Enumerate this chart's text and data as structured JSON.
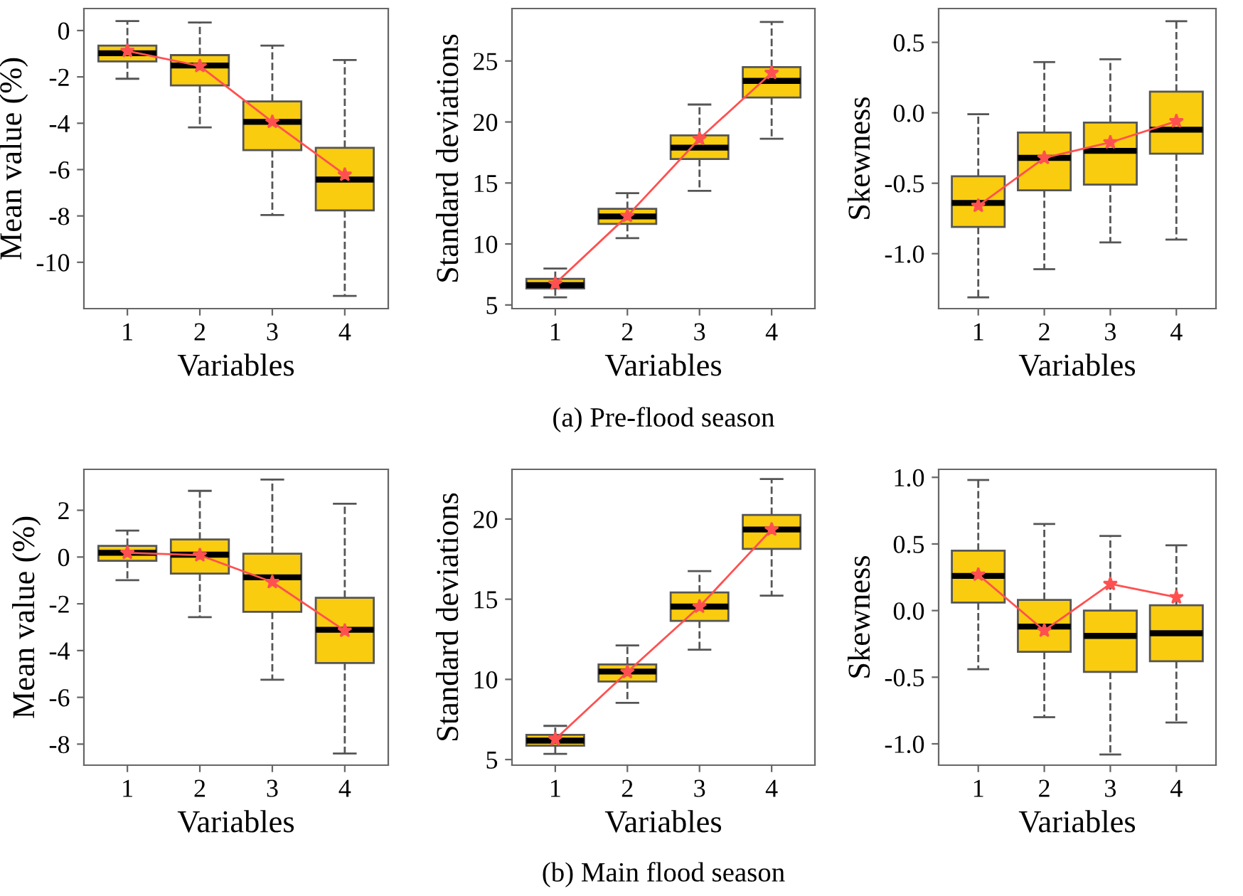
{
  "chart_data": [
    {
      "type": "box",
      "xlabel": "Variables",
      "ylabel": "Mean value (%)",
      "categories": [
        "1",
        "2",
        "3",
        "4"
      ],
      "ylim": [
        -12,
        0.95
      ],
      "yticks": [
        -10,
        -8,
        -6,
        -4,
        -2,
        0
      ],
      "boxes": [
        {
          "low": -2.08,
          "q1": -1.33,
          "median": -0.98,
          "q3": -0.65,
          "high": 0.41
        },
        {
          "low": -4.18,
          "q1": -2.37,
          "median": -1.51,
          "q3": -1.06,
          "high": 0.35
        },
        {
          "low": -7.96,
          "q1": -5.16,
          "median": -3.94,
          "q3": -3.06,
          "high": -0.65
        },
        {
          "low": -11.45,
          "q1": -7.76,
          "median": -6.43,
          "q3": -5.06,
          "high": -1.27
        }
      ],
      "series": [
        {
          "type": "line",
          "color": "#ff5050",
          "marker": "star",
          "values": [
            -0.88,
            -1.53,
            -3.94,
            -6.22
          ]
        }
      ]
    },
    {
      "type": "box",
      "xlabel": "Variables",
      "ylabel": "Standard deviations",
      "categories": [
        "1",
        "2",
        "3",
        "4"
      ],
      "ylim": [
        4.7,
        29.3
      ],
      "yticks": [
        5,
        10,
        15,
        20,
        25
      ],
      "annotations": [
        "(a) Pre-flood season"
      ],
      "boxes": [
        {
          "low": 5.62,
          "q1": 6.36,
          "median": 6.63,
          "q3": 7.14,
          "high": 7.99
        },
        {
          "low": 10.48,
          "q1": 11.64,
          "median": 12.26,
          "q3": 12.88,
          "high": 14.17
        },
        {
          "low": 14.36,
          "q1": 16.96,
          "median": 17.9,
          "q3": 18.9,
          "high": 21.43
        },
        {
          "low": 18.63,
          "q1": 22.0,
          "median": 23.37,
          "q3": 24.5,
          "high": 28.2
        }
      ],
      "series": [
        {
          "type": "line",
          "color": "#ff5050",
          "marker": "star",
          "values": [
            6.75,
            12.3,
            18.63,
            24.03
          ]
        }
      ]
    },
    {
      "type": "box",
      "xlabel": "Variables",
      "ylabel": "Skewness",
      "categories": [
        "1",
        "2",
        "3",
        "4"
      ],
      "ylim": [
        -1.39,
        0.74
      ],
      "yticks": [
        {
          "value": -1.0,
          "label": "-1.0"
        },
        {
          "value": -0.5,
          "label": "-0.5"
        },
        {
          "value": 0.0,
          "label": "0.0"
        },
        {
          "value": 0.5,
          "label": "0.5"
        }
      ],
      "boxes": [
        {
          "low": -1.31,
          "q1": -0.81,
          "median": -0.64,
          "q3": -0.45,
          "high": -0.01
        },
        {
          "low": -1.11,
          "q1": -0.55,
          "median": -0.32,
          "q3": -0.14,
          "high": 0.36
        },
        {
          "low": -0.92,
          "q1": -0.51,
          "median": -0.27,
          "q3": -0.07,
          "high": 0.38
        },
        {
          "low": -0.9,
          "q1": -0.29,
          "median": -0.12,
          "q3": 0.15,
          "high": 0.65
        }
      ],
      "series": [
        {
          "type": "line",
          "color": "#ff5050",
          "marker": "star",
          "values": [
            -0.66,
            -0.32,
            -0.21,
            -0.06
          ]
        }
      ]
    },
    {
      "type": "box",
      "xlabel": "Variables",
      "ylabel": "Mean value (%)",
      "categories": [
        "1",
        "2",
        "3",
        "4"
      ],
      "ylim": [
        -8.9,
        3.75
      ],
      "yticks": [
        -8,
        -6,
        -4,
        -2,
        0,
        2
      ],
      "boxes": [
        {
          "low": -0.99,
          "q1": -0.16,
          "median": 0.18,
          "q3": 0.48,
          "high": 1.13
        },
        {
          "low": -2.57,
          "q1": -0.71,
          "median": 0.1,
          "q3": 0.75,
          "high": 2.83
        },
        {
          "low": -5.25,
          "q1": -2.34,
          "median": -0.87,
          "q3": 0.14,
          "high": 3.31
        },
        {
          "low": -8.4,
          "q1": -4.53,
          "median": -3.11,
          "q3": -1.74,
          "high": 2.28
        }
      ],
      "series": [
        {
          "type": "line",
          "color": "#ff5050",
          "marker": "star",
          "values": [
            0.18,
            0.08,
            -1.07,
            -3.15
          ]
        }
      ]
    },
    {
      "type": "box",
      "xlabel": "Variables",
      "ylabel": "Standard deviations",
      "categories": [
        "1",
        "2",
        "3",
        "4"
      ],
      "ylim": [
        4.65,
        23.1
      ],
      "yticks": [
        5,
        10,
        15,
        20
      ],
      "annotations": [
        "(b) Main flood season"
      ],
      "boxes": [
        {
          "low": 5.35,
          "q1": 5.86,
          "median": 6.18,
          "q3": 6.54,
          "high": 7.1
        },
        {
          "low": 8.54,
          "q1": 9.87,
          "median": 10.49,
          "q3": 10.93,
          "high": 12.12
        },
        {
          "low": 11.85,
          "q1": 13.65,
          "median": 14.54,
          "q3": 15.42,
          "high": 16.75
        },
        {
          "low": 15.22,
          "q1": 18.14,
          "median": 19.35,
          "q3": 20.26,
          "high": 22.5
        }
      ],
      "series": [
        {
          "type": "line",
          "color": "#ff5050",
          "marker": "star",
          "values": [
            6.27,
            10.46,
            14.54,
            19.35
          ]
        }
      ]
    },
    {
      "type": "box",
      "xlabel": "Variables",
      "ylabel": "Skewness",
      "categories": [
        "1",
        "2",
        "3",
        "4"
      ],
      "ylim": [
        -1.16,
        1.06
      ],
      "yticks": [
        {
          "value": -1.0,
          "label": "-1.0"
        },
        {
          "value": -0.5,
          "label": "-0.5"
        },
        {
          "value": 0.0,
          "label": "0.0"
        },
        {
          "value": 0.5,
          "label": "0.5"
        },
        {
          "value": 1.0,
          "label": "1.0"
        }
      ],
      "boxes": [
        {
          "low": -0.44,
          "q1": 0.06,
          "median": 0.26,
          "q3": 0.45,
          "high": 0.98
        },
        {
          "low": -0.8,
          "q1": -0.31,
          "median": -0.12,
          "q3": 0.08,
          "high": 0.65
        },
        {
          "low": -1.08,
          "q1": -0.46,
          "median": -0.19,
          "q3": 0.0,
          "high": 0.56
        },
        {
          "low": -0.84,
          "q1": -0.38,
          "median": -0.17,
          "q3": 0.04,
          "high": 0.49
        }
      ],
      "series": [
        {
          "type": "line",
          "color": "#ff5050",
          "marker": "star",
          "values": [
            0.27,
            -0.15,
            0.2,
            0.1
          ]
        }
      ]
    }
  ]
}
